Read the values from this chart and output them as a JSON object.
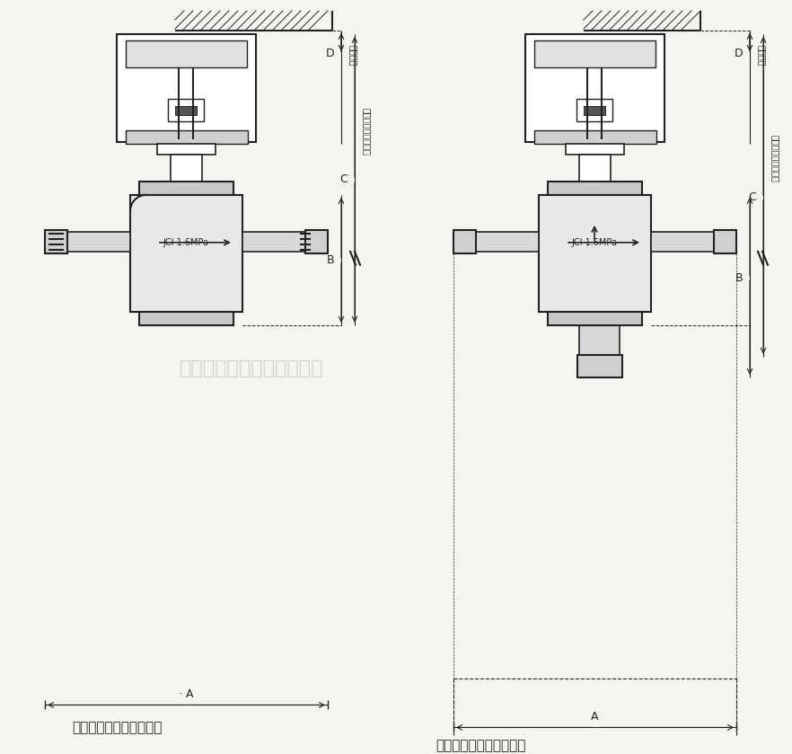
{
  "bg_color": "#f5f5f0",
  "line_color": "#222222",
  "title1": "图一、二通阀外形尺寸图",
  "title2": "图二、三通阀外形尺寸图",
  "watermark": "上海通达机电工程有限公司",
  "label_D": "D",
  "label_C": "C",
  "label_B": "B",
  "label_A": "A",
  "label_top_note1": "顶留尺寸",
  "label_side_note1": "阀与驱动器安装尺寸",
  "label_side_note2": "阀与驱动器安装尺寸",
  "label_jci1": "JCI 1.6MPa",
  "label_jci2": "JCI 1.6MPa",
  "fig_width": 8.82,
  "fig_height": 8.39
}
